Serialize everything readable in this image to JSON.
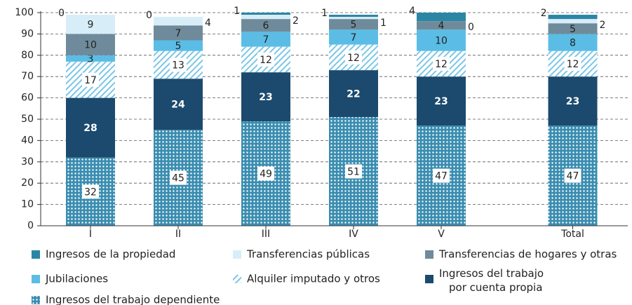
{
  "chart_data": {
    "type": "stacked_bar",
    "categories": [
      "I",
      "II",
      "III",
      "IV",
      "V",
      "Total"
    ],
    "ylim": [
      0,
      100
    ],
    "yticks": [
      0,
      10,
      20,
      30,
      40,
      50,
      60,
      70,
      80,
      90,
      100
    ],
    "grid": true,
    "series": [
      {
        "name": "Ingresos del trabajo dependiente",
        "color": "#3a8db0",
        "pattern": "dots",
        "values": [
          32,
          45,
          49,
          51,
          47,
          47
        ]
      },
      {
        "name": "Ingresos del trabajo por cuenta propia",
        "color": "#1b4a6e",
        "values": [
          28,
          24,
          23,
          22,
          23,
          23
        ]
      },
      {
        "name": "Alquiler imputado y otros",
        "color": "#7cc6e6",
        "pattern": "hatch",
        "values": [
          17,
          13,
          12,
          12,
          12,
          12
        ]
      },
      {
        "name": "Jubilaciones",
        "color": "#5bbde6",
        "values": [
          3,
          5,
          7,
          7,
          10,
          8
        ]
      },
      {
        "name": "Transferencias de hogares y otras",
        "color": "#6f8b9b",
        "values": [
          10,
          7,
          6,
          5,
          4,
          5
        ]
      },
      {
        "name": "Transferencias públicas",
        "color": "#d7eef8",
        "values": [
          9,
          4,
          2,
          1,
          0,
          2
        ]
      },
      {
        "name": "Ingresos de la propiedad",
        "color": "#2b86a6",
        "values": [
          0,
          0,
          1,
          1,
          4,
          2
        ]
      }
    ]
  }
}
